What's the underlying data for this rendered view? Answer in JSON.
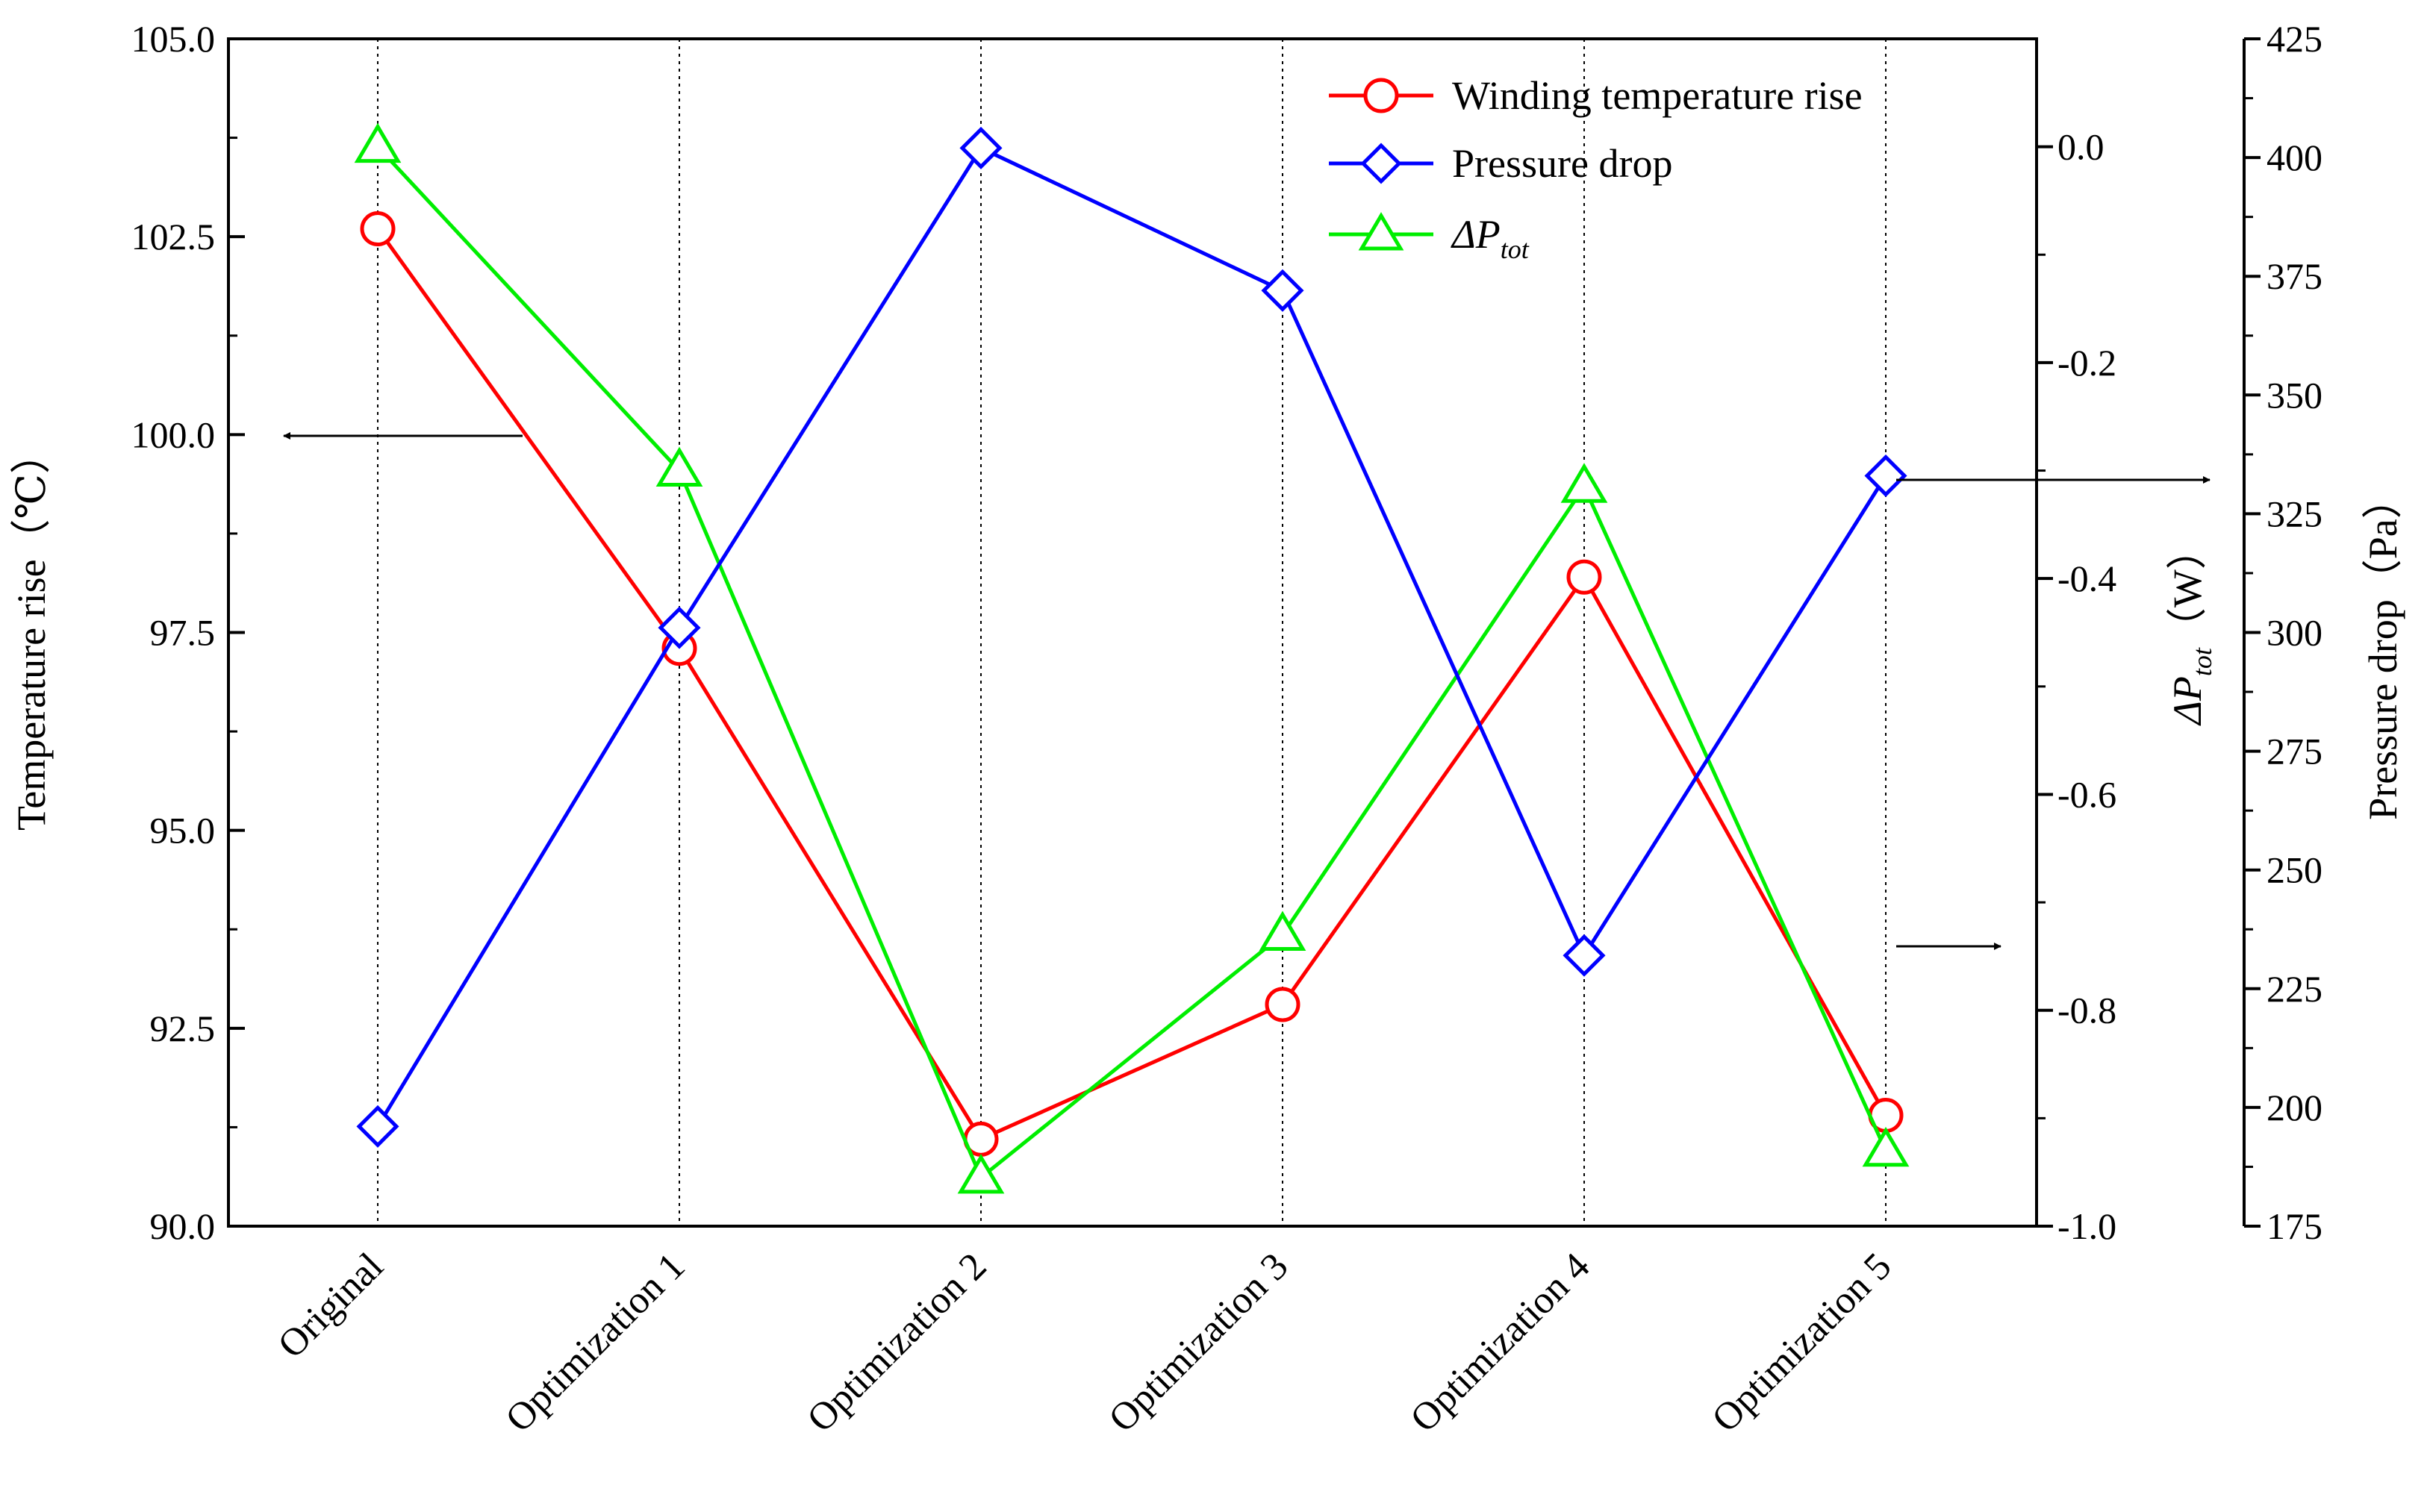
{
  "chart_data": {
    "type": "line",
    "categories": [
      "Original",
      "Optimization 1",
      "Optimization 2",
      "Optimization 3",
      "Optimization 4",
      "Optimization 5"
    ],
    "series": [
      {
        "name": "Winding temperature rise",
        "axis": "left",
        "color": "#ff0000",
        "marker": "circle",
        "values": [
          102.6,
          97.3,
          91.1,
          92.8,
          98.2,
          91.4
        ]
      },
      {
        "name": "Pressure drop",
        "axis": "right_pressure",
        "color": "#0000ff",
        "marker": "diamond",
        "values": [
          196,
          301,
          402,
          372,
          232,
          333
        ]
      },
      {
        "name": "ΔP",
        "name_subscript": "tot",
        "axis": "right_dp",
        "color": "#00ee00",
        "marker": "triangle",
        "values": [
          -0.0,
          -0.3,
          -0.955,
          -0.73,
          -0.315,
          -0.93
        ]
      }
    ],
    "axes": {
      "left": {
        "title": "Temperature rise（℃）",
        "ylim": [
          90.0,
          105.0
        ],
        "ticks": [
          "90.0",
          "92.5",
          "95.0",
          "97.5",
          "100.0",
          "102.5",
          "105.0"
        ]
      },
      "right_dp": {
        "title_main": "ΔP",
        "title_sub": "tot",
        "title_unit": "（W）",
        "ylim": [
          -1.0,
          0.1
        ],
        "ticks": [
          "-1.0",
          "-0.8",
          "-0.6",
          "-0.4",
          "-0.2",
          "0.0"
        ]
      },
      "right_pressure": {
        "title": "Pressure drop（Pa）",
        "ylim": [
          175,
          425
        ],
        "ticks": [
          "175",
          "200",
          "225",
          "250",
          "275",
          "300",
          "325",
          "350",
          "375",
          "400",
          "425"
        ]
      }
    },
    "legend_position": "top-right",
    "grid": "vertical dotted lines at categories"
  }
}
